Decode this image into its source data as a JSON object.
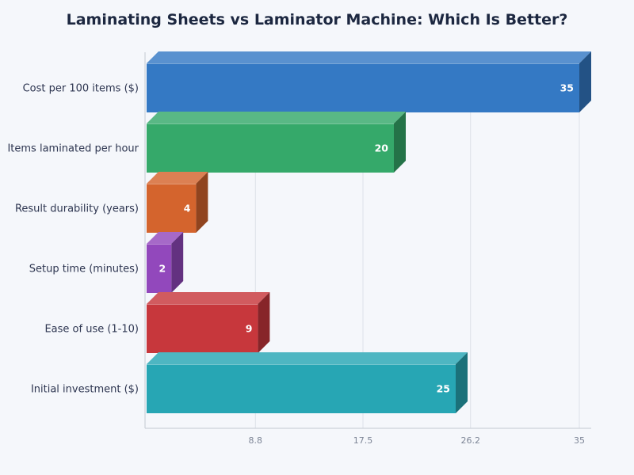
{
  "chart_data": {
    "type": "bar",
    "orientation": "horizontal",
    "title": "Laminating Sheets vs Laminator Machine: Which Is Better?",
    "categories": [
      "Cost per 100 items ($)",
      "Items laminated per hour",
      "Result durability (years)",
      "Setup time (minutes)",
      "Ease of use (1-10)",
      "Initial investment ($)"
    ],
    "values": [
      35,
      20,
      4,
      2,
      9,
      25
    ],
    "colors": [
      "#3479c4",
      "#35a96a",
      "#d4642d",
      "#9248bc",
      "#c7373c",
      "#27a6b4"
    ],
    "xlim": [
      0,
      35
    ],
    "xticks": [
      8.8,
      17.5,
      26.2,
      35
    ],
    "xtick_labels": [
      "8.8",
      "17.5",
      "26.2",
      "35"
    ],
    "grid": true,
    "style": "3d"
  }
}
